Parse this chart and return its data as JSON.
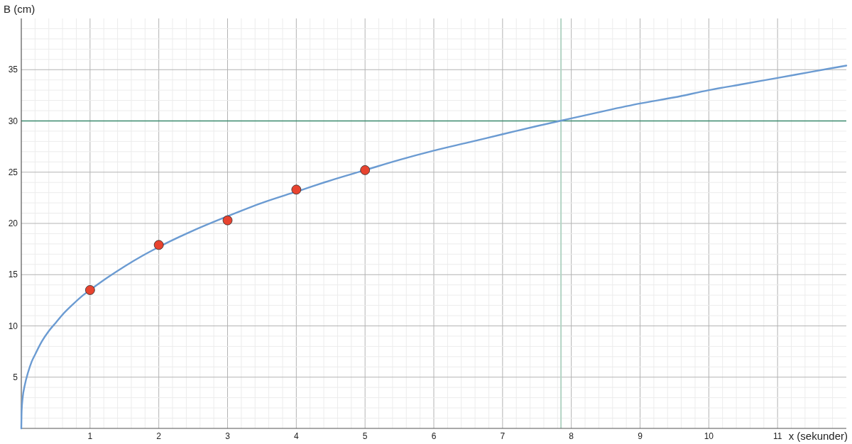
{
  "chart_data": {
    "type": "line",
    "xlabel": "x (sekunder)",
    "ylabel": "B (cm)",
    "xlim": [
      0,
      12
    ],
    "ylim": [
      0,
      40
    ],
    "xticks": [
      {
        "value": 0.2,
        "label": null
      },
      {
        "value": 0.4,
        "label": null
      },
      {
        "value": 0.6,
        "label": null
      },
      {
        "value": 0.8,
        "label": null
      },
      1,
      {
        "value": 1.2,
        "label": null
      },
      {
        "value": 1.4,
        "label": null
      },
      {
        "value": 1.6,
        "label": null
      },
      {
        "value": 1.8,
        "label": null
      },
      2,
      {
        "value": 2.2,
        "label": null
      },
      {
        "value": 2.4,
        "label": null
      },
      {
        "value": 2.6,
        "label": null
      },
      {
        "value": 2.8,
        "label": null
      },
      3,
      {
        "value": 3.2,
        "label": null
      },
      {
        "value": 3.4,
        "label": null
      },
      {
        "value": 3.6,
        "label": null
      },
      {
        "value": 3.8,
        "label": null
      },
      4,
      {
        "value": 4.2,
        "label": null
      },
      {
        "value": 4.4,
        "label": null
      },
      {
        "value": 4.6,
        "label": null
      },
      {
        "value": 4.8,
        "label": null
      },
      5,
      {
        "value": 5.2,
        "label": null
      },
      {
        "value": 5.4,
        "label": null
      },
      {
        "value": 5.6,
        "label": null
      },
      {
        "value": 5.8,
        "label": null
      },
      6,
      {
        "value": 6.2,
        "label": null
      },
      {
        "value": 6.4,
        "label": null
      },
      {
        "value": 6.6,
        "label": null
      },
      {
        "value": 6.8,
        "label": null
      },
      7,
      {
        "value": 7.2,
        "label": null
      },
      {
        "value": 7.4,
        "label": null
      },
      {
        "value": 7.6,
        "label": null
      },
      {
        "value": 7.8,
        "label": null
      },
      8,
      {
        "value": 8.2,
        "label": null
      },
      {
        "value": 8.4,
        "label": null
      },
      {
        "value": 8.6,
        "label": null
      },
      {
        "value": 8.8,
        "label": null
      },
      9,
      {
        "value": 9.2,
        "label": null
      },
      {
        "value": 9.4,
        "label": null
      },
      {
        "value": 9.6,
        "label": null
      },
      {
        "value": 9.8,
        "label": null
      },
      10,
      {
        "value": 10.2,
        "label": null
      },
      {
        "value": 10.4,
        "label": null
      },
      {
        "value": 10.6,
        "label": null
      },
      {
        "value": 10.8,
        "label": null
      },
      11,
      {
        "value": 11.2,
        "label": null
      },
      {
        "value": 11.4,
        "label": null
      },
      {
        "value": 11.6,
        "label": null
      },
      {
        "value": 11.8,
        "label": null
      }
    ],
    "yticks": [
      {
        "value": 1,
        "label": null
      },
      {
        "value": 2,
        "label": null
      },
      {
        "value": 3,
        "label": null
      },
      {
        "value": 4,
        "label": null
      },
      5,
      {
        "value": 6,
        "label": null
      },
      {
        "value": 7,
        "label": null
      },
      {
        "value": 8,
        "label": null
      },
      {
        "value": 9,
        "label": null
      },
      10,
      {
        "value": 11,
        "label": null
      },
      {
        "value": 12,
        "label": null
      },
      {
        "value": 13,
        "label": null
      },
      {
        "value": 14,
        "label": null
      },
      15,
      {
        "value": 16,
        "label": null
      },
      {
        "value": 17,
        "label": null
      },
      {
        "value": 18,
        "label": null
      },
      {
        "value": 19,
        "label": null
      },
      20,
      {
        "value": 21,
        "label": null
      },
      {
        "value": 22,
        "label": null
      },
      {
        "value": 23,
        "label": null
      },
      {
        "value": 24,
        "label": null
      },
      25,
      {
        "value": 26,
        "label": null
      },
      {
        "value": 27,
        "label": null
      },
      {
        "value": 28,
        "label": null
      },
      {
        "value": 29,
        "label": null
      },
      30,
      {
        "value": 31,
        "label": null
      },
      {
        "value": 32,
        "label": null
      },
      {
        "value": 33,
        "label": null
      },
      {
        "value": 34,
        "label": null
      },
      35,
      {
        "value": 36,
        "label": null
      },
      {
        "value": 37,
        "label": null
      },
      {
        "value": 38,
        "label": null
      },
      {
        "value": 39,
        "label": null
      }
    ],
    "grid": true,
    "series": [
      {
        "type": "line",
        "color": "#6b9bd2",
        "x": [
          0,
          0.005,
          0.02,
          0.05,
          0.1,
          0.15,
          0.2,
          0.3,
          0.4,
          0.5,
          0.6,
          0.75,
          0.9,
          1,
          1.25,
          1.5,
          1.75,
          2,
          2.5,
          3,
          3.5,
          4,
          4.5,
          5,
          5.5,
          6,
          6.5,
          7,
          7.5,
          8,
          8.5,
          9,
          9.5,
          10,
          10.5,
          11,
          11.5,
          12
        ],
        "values": [
          0,
          1.7,
          3.0,
          4.2,
          5.5,
          6.5,
          7.2,
          8.5,
          9.5,
          10.3,
          11.1,
          12.1,
          13.0,
          13.5,
          14.7,
          15.8,
          16.8,
          17.7,
          19.3,
          20.7,
          22.0,
          23.1,
          24.2,
          25.2,
          26.2,
          27.1,
          27.9,
          28.7,
          29.5,
          30.25,
          31.0,
          31.7,
          32.3,
          33.0,
          33.6,
          34.2,
          34.8,
          35.4
        ]
      },
      {
        "type": "scatter",
        "color": "#e8432f",
        "marker": "circle",
        "x": [
          1,
          2,
          3,
          4,
          5
        ],
        "values": [
          13.5,
          17.9,
          20.3,
          23.3,
          25.2
        ]
      }
    ],
    "ref_lines": [
      {
        "axis": "y",
        "value": 30,
        "color": "#3b8a6e"
      },
      {
        "axis": "x",
        "value": 7.85,
        "color": "#b3d4c4"
      }
    ]
  }
}
